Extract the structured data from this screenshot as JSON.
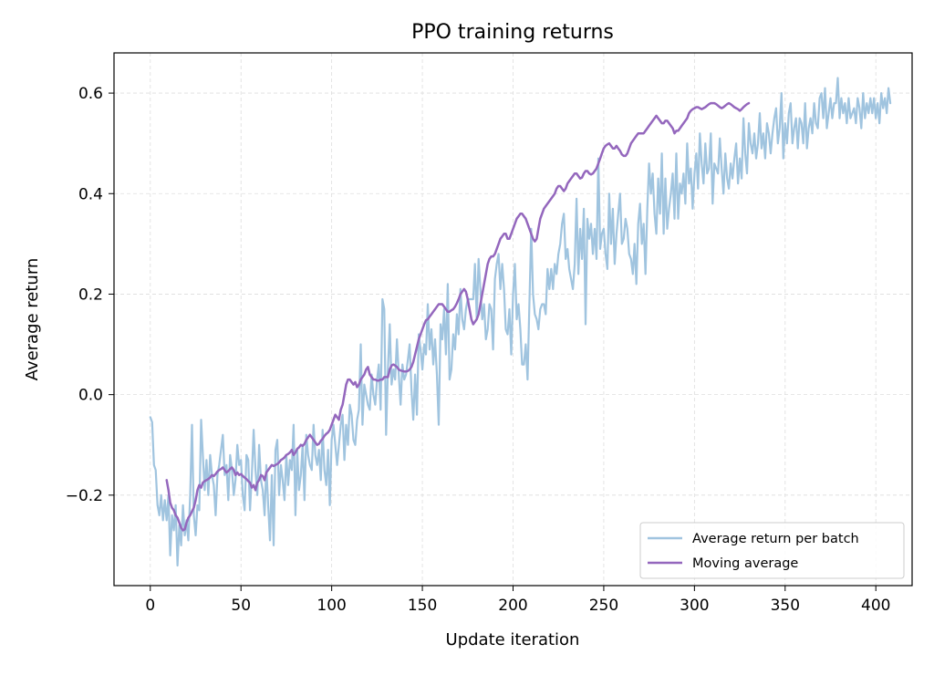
{
  "chart_data": {
    "type": "line",
    "title": "PPO training returns",
    "xlabel": "Update iteration",
    "ylabel": "Average return",
    "xlim": [
      -20,
      420
    ],
    "ylim": [
      -0.38,
      0.68
    ],
    "xticks": [
      0,
      50,
      100,
      150,
      200,
      250,
      300,
      350,
      400
    ],
    "xtick_labels": [
      "0",
      "50",
      "100",
      "150",
      "200",
      "250",
      "300",
      "350",
      "400"
    ],
    "yticks": [
      -0.2,
      0.0,
      0.2,
      0.4,
      0.6
    ],
    "ytick_labels": [
      "−0.2",
      "0.0",
      "0.2",
      "0.4",
      "0.6"
    ],
    "grid": true,
    "legend_position": "bottom-right",
    "series": [
      {
        "name": "Average return per batch",
        "color": "#a0c4df",
        "x_start": 0,
        "x_step": 1,
        "values": [
          -0.045,
          -0.055,
          -0.14,
          -0.15,
          -0.22,
          -0.24,
          -0.2,
          -0.25,
          -0.21,
          -0.25,
          -0.2,
          -0.32,
          -0.24,
          -0.27,
          -0.22,
          -0.34,
          -0.26,
          -0.3,
          -0.22,
          -0.28,
          -0.25,
          -0.29,
          -0.2,
          -0.06,
          -0.24,
          -0.28,
          -0.22,
          -0.23,
          -0.05,
          -0.12,
          -0.19,
          -0.13,
          -0.2,
          -0.12,
          -0.16,
          -0.18,
          -0.24,
          -0.16,
          -0.14,
          -0.11,
          -0.08,
          -0.16,
          -0.14,
          -0.21,
          -0.12,
          -0.15,
          -0.2,
          -0.17,
          -0.1,
          -0.14,
          -0.13,
          -0.2,
          -0.23,
          -0.12,
          -0.13,
          -0.23,
          -0.16,
          -0.07,
          -0.15,
          -0.2,
          -0.1,
          -0.17,
          -0.19,
          -0.24,
          -0.14,
          -0.22,
          -0.29,
          -0.16,
          -0.3,
          -0.11,
          -0.09,
          -0.2,
          -0.14,
          -0.17,
          -0.21,
          -0.12,
          -0.18,
          -0.13,
          -0.15,
          -0.06,
          -0.24,
          -0.11,
          -0.19,
          -0.16,
          -0.1,
          -0.21,
          -0.08,
          -0.12,
          -0.14,
          -0.15,
          -0.06,
          -0.12,
          -0.14,
          -0.11,
          -0.17,
          -0.07,
          -0.15,
          -0.18,
          -0.11,
          -0.22,
          -0.09,
          -0.06,
          -0.1,
          -0.14,
          -0.1,
          -0.06,
          -0.04,
          -0.13,
          -0.06,
          -0.1,
          -0.02,
          -0.04,
          -0.09,
          -0.1,
          -0.05,
          -0.03,
          0.1,
          -0.06,
          0.02,
          0.0,
          -0.02,
          -0.03,
          0.04,
          0.0,
          -0.02,
          0.03,
          0.06,
          -0.03,
          0.19,
          0.17,
          -0.08,
          0.05,
          0.14,
          0.02,
          0.05,
          0.03,
          0.11,
          0.04,
          -0.02,
          0.06,
          0.03,
          0.04,
          0.07,
          0.1,
          0.01,
          -0.05,
          0.04,
          -0.04,
          0.12,
          0.09,
          0.05,
          0.1,
          0.08,
          0.18,
          0.09,
          0.13,
          0.06,
          0.11,
          0.04,
          -0.06,
          0.14,
          0.11,
          0.17,
          0.08,
          0.22,
          0.03,
          0.05,
          0.12,
          0.09,
          0.16,
          0.12,
          0.21,
          0.15,
          0.13,
          0.17,
          0.19,
          0.19,
          0.19,
          0.19,
          0.26,
          0.15,
          0.27,
          0.21,
          0.15,
          0.18,
          0.11,
          0.13,
          0.18,
          0.17,
          0.09,
          0.23,
          0.26,
          0.28,
          0.21,
          0.26,
          0.21,
          0.13,
          0.12,
          0.17,
          0.08,
          0.2,
          0.26,
          0.15,
          0.18,
          0.13,
          0.06,
          0.06,
          0.1,
          0.03,
          0.18,
          0.33,
          0.2,
          0.16,
          0.15,
          0.13,
          0.17,
          0.18,
          0.18,
          0.16,
          0.25,
          0.21,
          0.25,
          0.21,
          0.26,
          0.24,
          0.28,
          0.3,
          0.34,
          0.36,
          0.27,
          0.29,
          0.25,
          0.23,
          0.21,
          0.26,
          0.39,
          0.24,
          0.33,
          0.27,
          0.37,
          0.14,
          0.35,
          0.31,
          0.34,
          0.28,
          0.33,
          0.27,
          0.47,
          0.29,
          0.32,
          0.33,
          0.28,
          0.25,
          0.4,
          0.3,
          0.37,
          0.26,
          0.32,
          0.36,
          0.4,
          0.3,
          0.31,
          0.35,
          0.33,
          0.28,
          0.27,
          0.24,
          0.3,
          0.22,
          0.34,
          0.38,
          0.3,
          0.34,
          0.24,
          0.37,
          0.46,
          0.4,
          0.44,
          0.36,
          0.32,
          0.43,
          0.36,
          0.48,
          0.32,
          0.43,
          0.33,
          0.37,
          0.4,
          0.44,
          0.35,
          0.48,
          0.35,
          0.42,
          0.4,
          0.44,
          0.38,
          0.5,
          0.42,
          0.45,
          0.37,
          0.44,
          0.48,
          0.41,
          0.52,
          0.46,
          0.42,
          0.5,
          0.44,
          0.45,
          0.52,
          0.38,
          0.46,
          0.45,
          0.44,
          0.51,
          0.45,
          0.4,
          0.48,
          0.43,
          0.41,
          0.46,
          0.43,
          0.47,
          0.5,
          0.42,
          0.47,
          0.43,
          0.55,
          0.48,
          0.44,
          0.54,
          0.5,
          0.48,
          0.52,
          0.47,
          0.5,
          0.56,
          0.49,
          0.52,
          0.47,
          0.54,
          0.52,
          0.48,
          0.52,
          0.55,
          0.57,
          0.5,
          0.53,
          0.6,
          0.47,
          0.54,
          0.5,
          0.56,
          0.58,
          0.5,
          0.53,
          0.55,
          0.49,
          0.55,
          0.54,
          0.5,
          0.58,
          0.49,
          0.53,
          0.55,
          0.52,
          0.58,
          0.54,
          0.53,
          0.59,
          0.6,
          0.55,
          0.61,
          0.53,
          0.56,
          0.59,
          0.55,
          0.58,
          0.58,
          0.63,
          0.55,
          0.59,
          0.56,
          0.58,
          0.54,
          0.59,
          0.55,
          0.56,
          0.57,
          0.54,
          0.59,
          0.57,
          0.53,
          0.6,
          0.55,
          0.58,
          0.56,
          0.59,
          0.56,
          0.59,
          0.55,
          0.58,
          0.54,
          0.6,
          0.57,
          0.59,
          0.56,
          0.61,
          0.58
        ]
      },
      {
        "name": "Moving average",
        "color": "#9467bd",
        "x_start": 9,
        "x_step": 1,
        "values": [
          -0.17,
          -0.19,
          -0.215,
          -0.225,
          -0.23,
          -0.24,
          -0.245,
          -0.255,
          -0.265,
          -0.27,
          -0.268,
          -0.255,
          -0.245,
          -0.24,
          -0.232,
          -0.225,
          -0.21,
          -0.19,
          -0.18,
          -0.185,
          -0.175,
          -0.172,
          -0.17,
          -0.168,
          -0.165,
          -0.16,
          -0.162,
          -0.158,
          -0.153,
          -0.15,
          -0.148,
          -0.145,
          -0.15,
          -0.155,
          -0.152,
          -0.148,
          -0.145,
          -0.15,
          -0.16,
          -0.155,
          -0.16,
          -0.158,
          -0.162,
          -0.165,
          -0.168,
          -0.172,
          -0.175,
          -0.185,
          -0.18,
          -0.19,
          -0.175,
          -0.17,
          -0.16,
          -0.162,
          -0.17,
          -0.155,
          -0.15,
          -0.145,
          -0.14,
          -0.142,
          -0.14,
          -0.138,
          -0.135,
          -0.13,
          -0.128,
          -0.125,
          -0.12,
          -0.118,
          -0.115,
          -0.11,
          -0.12,
          -0.115,
          -0.108,
          -0.105,
          -0.1,
          -0.102,
          -0.098,
          -0.09,
          -0.085,
          -0.08,
          -0.085,
          -0.09,
          -0.095,
          -0.1,
          -0.098,
          -0.092,
          -0.088,
          -0.082,
          -0.078,
          -0.075,
          -0.07,
          -0.06,
          -0.05,
          -0.04,
          -0.045,
          -0.05,
          -0.03,
          -0.02,
          0.0,
          0.02,
          0.03,
          0.03,
          0.025,
          0.02,
          0.025,
          0.015,
          0.02,
          0.03,
          0.035,
          0.04,
          0.05,
          0.055,
          0.04,
          0.035,
          0.03,
          0.03,
          0.028,
          0.028,
          0.03,
          0.03,
          0.035,
          0.035,
          0.035,
          0.05,
          0.058,
          0.06,
          0.058,
          0.055,
          0.05,
          0.048,
          0.047,
          0.046,
          0.046,
          0.047,
          0.05,
          0.055,
          0.065,
          0.08,
          0.095,
          0.11,
          0.12,
          0.13,
          0.14,
          0.148,
          0.15,
          0.155,
          0.16,
          0.165,
          0.17,
          0.175,
          0.18,
          0.18,
          0.18,
          0.175,
          0.17,
          0.165,
          0.165,
          0.168,
          0.17,
          0.175,
          0.182,
          0.19,
          0.2,
          0.205,
          0.21,
          0.205,
          0.19,
          0.17,
          0.15,
          0.14,
          0.145,
          0.15,
          0.16,
          0.18,
          0.2,
          0.22,
          0.24,
          0.26,
          0.27,
          0.275,
          0.275,
          0.28,
          0.29,
          0.3,
          0.31,
          0.315,
          0.32,
          0.32,
          0.31,
          0.31,
          0.32,
          0.33,
          0.34,
          0.35,
          0.355,
          0.36,
          0.36,
          0.355,
          0.35,
          0.34,
          0.33,
          0.32,
          0.31,
          0.305,
          0.31,
          0.33,
          0.35,
          0.36,
          0.37,
          0.375,
          0.38,
          0.385,
          0.39,
          0.395,
          0.4,
          0.41,
          0.415,
          0.415,
          0.41,
          0.405,
          0.41,
          0.42,
          0.425,
          0.43,
          0.435,
          0.44,
          0.44,
          0.435,
          0.43,
          0.432,
          0.44,
          0.445,
          0.445,
          0.44,
          0.438,
          0.44,
          0.445,
          0.45,
          0.46,
          0.47,
          0.48,
          0.49,
          0.495,
          0.498,
          0.5,
          0.495,
          0.49,
          0.49,
          0.495,
          0.49,
          0.485,
          0.478,
          0.475,
          0.475,
          0.48,
          0.49,
          0.5,
          0.505,
          0.51,
          0.515,
          0.52,
          0.52,
          0.52,
          0.52,
          0.525,
          0.53,
          0.535,
          0.54,
          0.545,
          0.55,
          0.555,
          0.55,
          0.545,
          0.54,
          0.54,
          0.545,
          0.545,
          0.54,
          0.535,
          0.53,
          0.52,
          0.525,
          0.525,
          0.53,
          0.535,
          0.54,
          0.545,
          0.55,
          0.56,
          0.565,
          0.568,
          0.57,
          0.572,
          0.572,
          0.57,
          0.568,
          0.57,
          0.572,
          0.575,
          0.578,
          0.58,
          0.58,
          0.58,
          0.578,
          0.575,
          0.572,
          0.57,
          0.572,
          0.575,
          0.578,
          0.58,
          0.578,
          0.575,
          0.572,
          0.57,
          0.568,
          0.565,
          0.568,
          0.572,
          0.575,
          0.578,
          0.58
        ]
      }
    ]
  }
}
